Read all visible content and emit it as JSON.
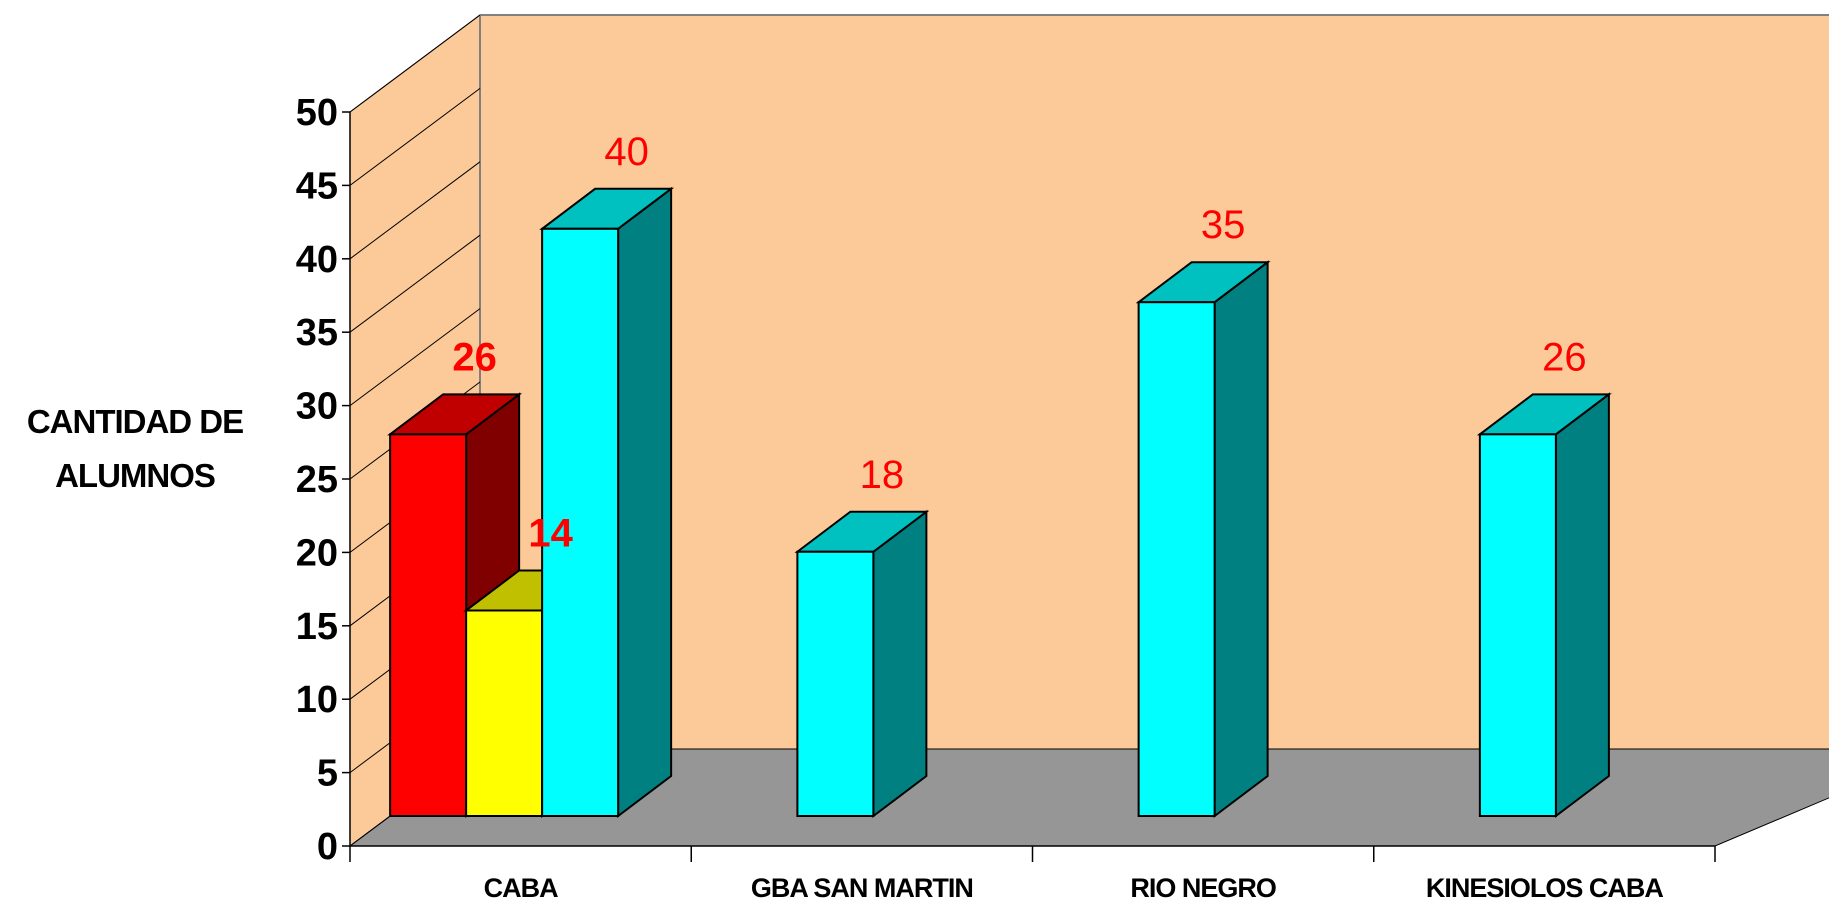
{
  "chart_data": {
    "type": "bar",
    "categories": [
      "CABA",
      "GBA SAN MARTIN",
      "RIO NEGRO",
      "KINESIOLOS CABA"
    ],
    "series": [
      {
        "values": [
          26,
          null,
          null,
          null
        ],
        "color": "#ff0000",
        "side_color": "#800000",
        "top_color": "#c00000"
      },
      {
        "values": [
          14,
          null,
          null,
          null
        ],
        "color": "#ffff00",
        "side_color": "#808000",
        "top_color": "#c0c000"
      },
      {
        "values": [
          40,
          18,
          35,
          26
        ],
        "color": "#00ffff",
        "side_color": "#008080",
        "top_color": "#00c0c0"
      }
    ],
    "data_labels": [
      {
        "category": "CABA",
        "series": 0,
        "text": "26",
        "bold": true
      },
      {
        "category": "CABA",
        "series": 1,
        "text": "14",
        "bold": true
      },
      {
        "category": "CABA",
        "series": 2,
        "text": "40",
        "bold": false
      },
      {
        "category": "GBA SAN MARTIN",
        "series": 2,
        "text": "18",
        "bold": false
      },
      {
        "category": "RIO NEGRO",
        "series": 2,
        "text": "35",
        "bold": false
      },
      {
        "category": "KINESIOLOS CABA",
        "series": 2,
        "text": "26",
        "bold": false
      }
    ],
    "ylabel": [
      "CANTIDAD DE",
      "ALUMNOS"
    ],
    "ylim": [
      0,
      50
    ],
    "yticks": [
      0,
      5,
      10,
      15,
      20,
      25,
      30,
      35,
      40,
      45,
      50
    ],
    "wall_color": "#fcca98",
    "floor_color": "#969696",
    "label_color": "#ff0000",
    "projection": "3d"
  }
}
